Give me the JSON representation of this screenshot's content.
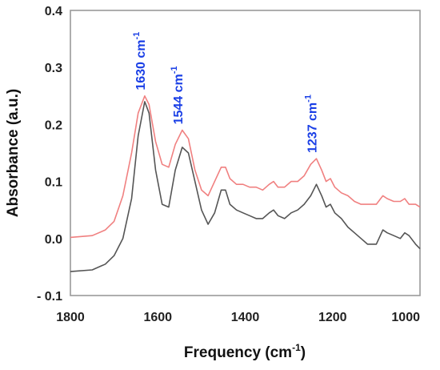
{
  "chart_data": {
    "type": "line",
    "xlabel": "Frequency (cm",
    "xlabel_sup": "-1",
    "xlabel_tail": ")",
    "ylabel": "Absorbance (a.u.)",
    "xlim": [
      1800,
      1000
    ],
    "ylim": [
      -0.1,
      0.4
    ],
    "x_reversed": true,
    "grid": false,
    "x_ticks": [
      1800,
      1600,
      1400,
      1200,
      1000
    ],
    "x_tick_labels": [
      "1800",
      "1600",
      "1400",
      "1200",
      "1000"
    ],
    "y_ticks": [
      -0.1,
      0.0,
      0.1,
      0.2,
      0.3,
      0.4
    ],
    "y_tick_labels": [
      "- 0.1",
      "0.0",
      "0.1",
      "0.2",
      "0.3",
      "0.4"
    ],
    "colors": {
      "series_top": "#f08080",
      "series_bottom": "#555555",
      "annotation": "#1a3fe6",
      "frame": "#9a9a9a"
    },
    "series": [
      {
        "color": "#f08080",
        "x": [
          1800,
          1750,
          1720,
          1700,
          1680,
          1660,
          1645,
          1630,
          1620,
          1605,
          1590,
          1575,
          1560,
          1544,
          1530,
          1515,
          1500,
          1485,
          1470,
          1455,
          1445,
          1435,
          1420,
          1405,
          1390,
          1375,
          1360,
          1345,
          1335,
          1325,
          1310,
          1295,
          1280,
          1265,
          1250,
          1237,
          1225,
          1215,
          1205,
          1195,
          1180,
          1165,
          1150,
          1135,
          1120,
          1100,
          1085,
          1075,
          1060,
          1045,
          1035,
          1025,
          1010,
          1000
        ],
        "y": [
          0.002,
          0.005,
          0.015,
          0.03,
          0.075,
          0.15,
          0.22,
          0.25,
          0.235,
          0.17,
          0.13,
          0.125,
          0.165,
          0.19,
          0.175,
          0.12,
          0.085,
          0.075,
          0.1,
          0.125,
          0.125,
          0.105,
          0.095,
          0.095,
          0.09,
          0.09,
          0.085,
          0.095,
          0.1,
          0.09,
          0.09,
          0.1,
          0.1,
          0.11,
          0.13,
          0.14,
          0.12,
          0.1,
          0.105,
          0.09,
          0.08,
          0.075,
          0.065,
          0.06,
          0.06,
          0.06,
          0.075,
          0.07,
          0.065,
          0.065,
          0.07,
          0.06,
          0.06,
          0.055
        ]
      },
      {
        "color": "#555555",
        "x": [
          1800,
          1750,
          1720,
          1700,
          1680,
          1660,
          1645,
          1630,
          1620,
          1605,
          1590,
          1575,
          1560,
          1544,
          1530,
          1515,
          1500,
          1485,
          1470,
          1455,
          1445,
          1435,
          1420,
          1405,
          1390,
          1375,
          1360,
          1345,
          1335,
          1325,
          1310,
          1295,
          1280,
          1265,
          1250,
          1237,
          1225,
          1215,
          1205,
          1195,
          1180,
          1165,
          1150,
          1135,
          1120,
          1100,
          1085,
          1075,
          1060,
          1045,
          1035,
          1025,
          1010,
          1000
        ],
        "y": [
          -0.058,
          -0.055,
          -0.045,
          -0.03,
          0.0,
          0.07,
          0.18,
          0.24,
          0.22,
          0.12,
          0.06,
          0.055,
          0.12,
          0.16,
          0.15,
          0.1,
          0.05,
          0.025,
          0.045,
          0.085,
          0.085,
          0.06,
          0.05,
          0.045,
          0.04,
          0.035,
          0.035,
          0.045,
          0.05,
          0.04,
          0.035,
          0.045,
          0.05,
          0.06,
          0.075,
          0.095,
          0.075,
          0.055,
          0.06,
          0.045,
          0.035,
          0.02,
          0.01,
          0.0,
          -0.01,
          -0.01,
          0.015,
          0.01,
          0.005,
          0.0,
          0.01,
          0.005,
          -0.01,
          -0.018
        ]
      }
    ],
    "annotations": [
      {
        "label": "1630 cm",
        "sup": "-1",
        "x": 1630,
        "y": 0.26
      },
      {
        "label": "1544 cm",
        "sup": "-1",
        "x": 1544,
        "y": 0.2
      },
      {
        "label": "1237 cm",
        "sup": "-1",
        "x": 1237,
        "y": 0.15
      }
    ]
  }
}
